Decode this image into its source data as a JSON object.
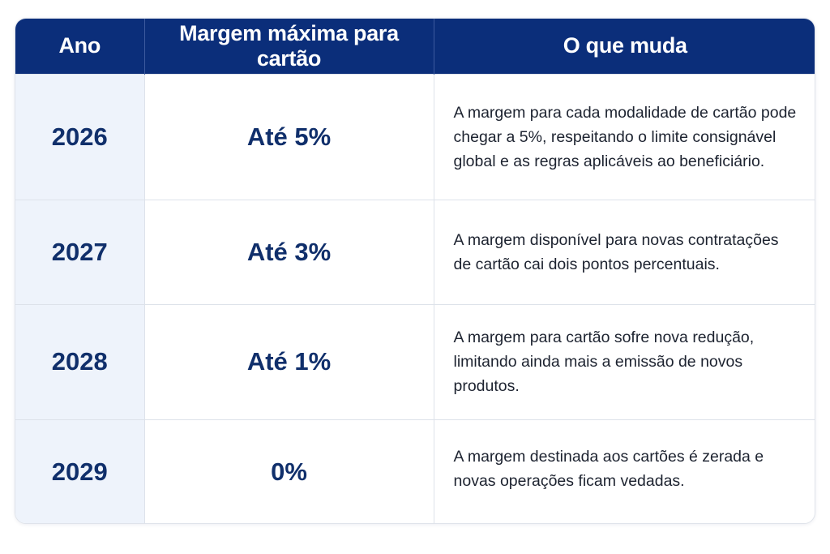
{
  "table": {
    "headers": [
      "Ano",
      "Margem máxima para cartão",
      "O que muda"
    ],
    "rows": [
      {
        "year": "2026",
        "margin": "Até 5%",
        "description": "A margem para cada modalidade de cartão pode chegar a 5%, respeitando o limite consignável global e as regras aplicáveis ao beneficiário."
      },
      {
        "year": "2027",
        "margin": "Até 3%",
        "description": "A margem disponível para novas contratações de cartão cai dois pontos percentuais."
      },
      {
        "year": "2028",
        "margin": "Até 1%",
        "description": "A margem para cartão sofre nova redução, limitando ainda mais a emissão de novos produtos."
      },
      {
        "year": "2029",
        "margin": "0%",
        "description": "A margem destinada aos cartões é zerada e novas operações ficam vedadas."
      }
    ]
  },
  "colors": {
    "header_background": "#0b2e7a",
    "header_text": "#ffffff",
    "year_column_background": "#eef3fb",
    "emphasis_text": "#102f6b"
  }
}
